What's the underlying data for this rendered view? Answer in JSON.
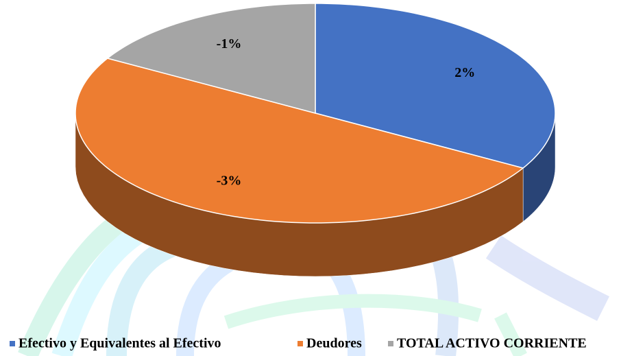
{
  "chart_data": {
    "type": "pie",
    "categories": [
      "Efectivo y Equivalentes al Efectivo",
      "Deudores",
      "TOTAL ACTIVO CORRIENTE"
    ],
    "values": [
      2,
      -3,
      -1
    ],
    "value_labels": [
      "2%",
      "-3%",
      "-1%"
    ],
    "colors": [
      "#4472c4",
      "#ed7d31",
      "#a5a5a5"
    ]
  }
}
